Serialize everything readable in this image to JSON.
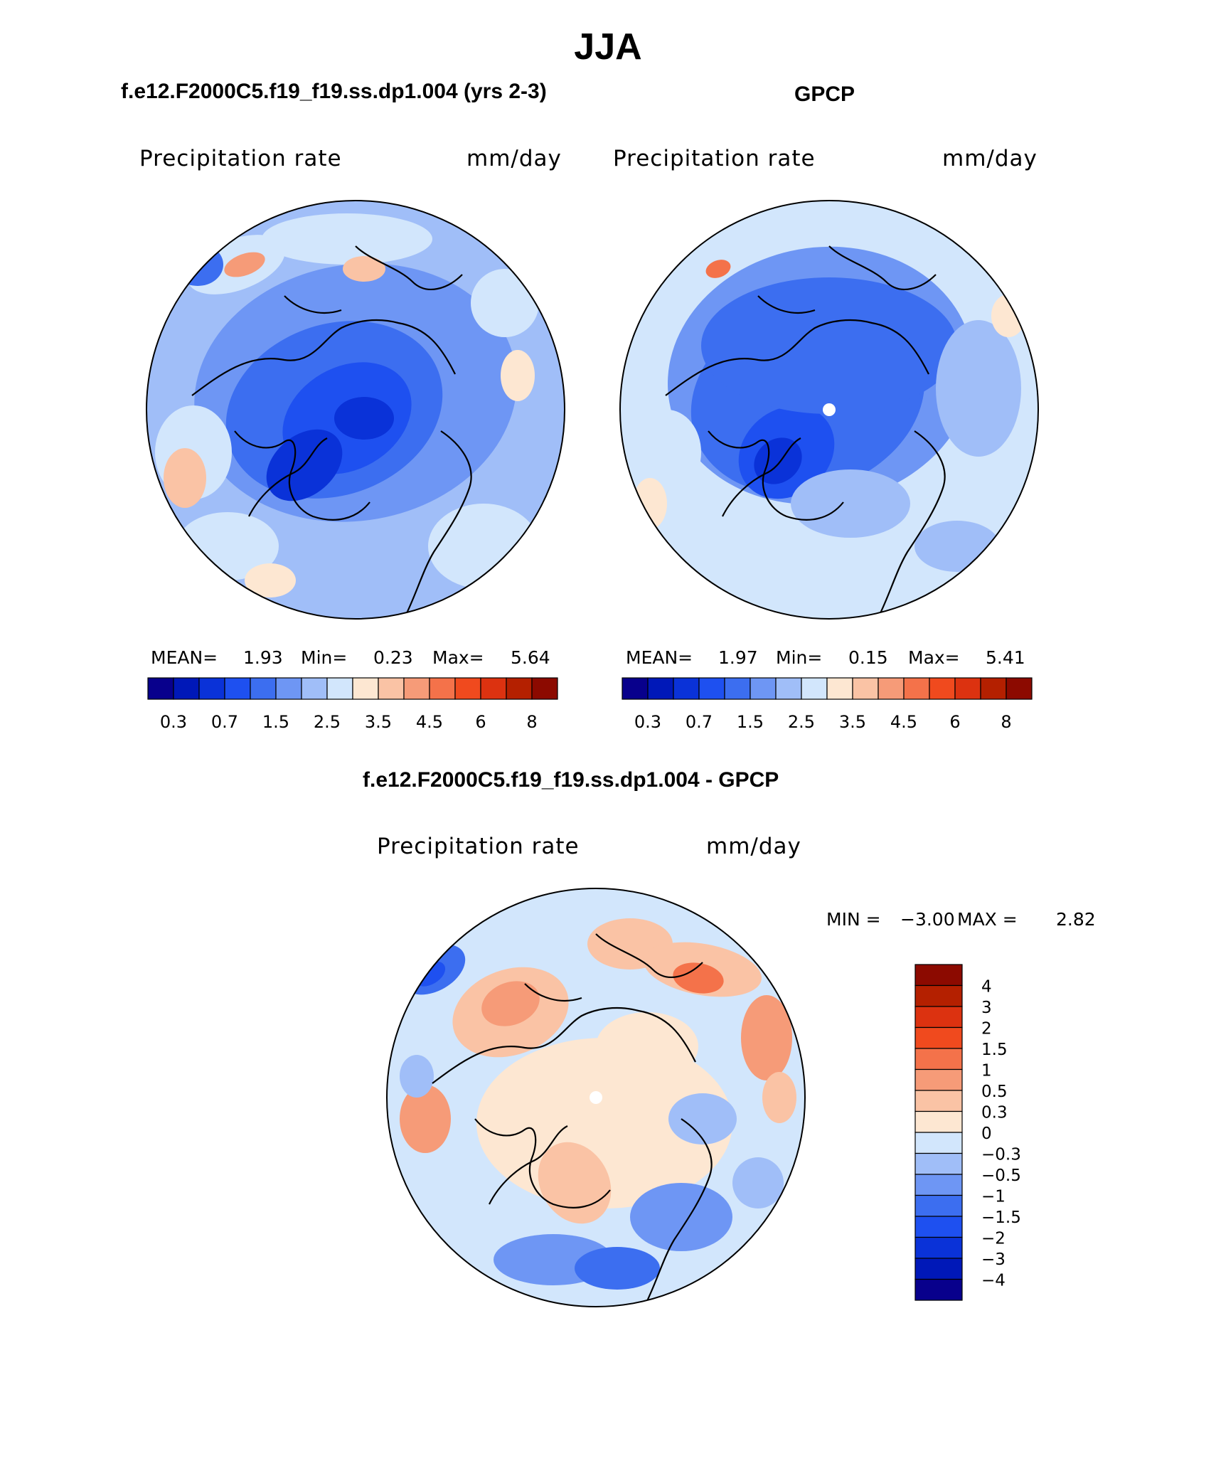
{
  "main_title": "JJA",
  "panels": [
    {
      "title": "f.e12.F2000C5.f19_f19.ss.dp1.004 (yrs 2-3)",
      "variable": "Precipitation rate",
      "units": "mm/day",
      "stats": {
        "mean_label": "MEAN=",
        "mean": "1.93",
        "min_label": "Min=",
        "min": "0.23",
        "max_label": "Max=",
        "max": "5.64"
      }
    },
    {
      "title": "GPCP",
      "variable": "Precipitation rate",
      "units": "mm/day",
      "stats": {
        "mean_label": "MEAN=",
        "mean": "1.97",
        "min_label": "Min=",
        "min": "0.15",
        "max_label": "Max=",
        "max": "5.41"
      }
    },
    {
      "title": "f.e12.F2000C5.f19_f19.ss.dp1.004 - GPCP",
      "variable": "Precipitation rate",
      "units": "mm/day",
      "stats": {
        "min_label": "MIN =",
        "min": "−3.00",
        "max_label": "MAX =",
        "max": "2.82"
      }
    }
  ],
  "chart_data": [
    {
      "type": "heatmap",
      "projection": "north-polar-stereographic",
      "title": "f.e12.F2000C5.f19_f19.ss.dp1.004 (yrs 2-3)",
      "variable": "Precipitation rate",
      "units": "mm/day",
      "mean": 1.93,
      "min": 0.23,
      "max": 5.64,
      "colorbar": {
        "orientation": "horizontal",
        "levels": [
          0.2,
          0.3,
          0.5,
          0.7,
          1,
          1.5,
          2,
          2.5,
          3,
          3.5,
          4,
          4.5,
          5,
          6,
          7,
          8
        ],
        "tick_labels": [
          "0.3",
          "0.7",
          "1.5",
          "2.5",
          "3.5",
          "4.5",
          "6",
          "8"
        ],
        "colors": [
          "#08008c",
          "#0018b8",
          "#0a32d8",
          "#1e50f0",
          "#3c6ef0",
          "#6e96f4",
          "#a0bef8",
          "#d2e6fc",
          "#fde7d2",
          "#fac3a5",
          "#f69b78",
          "#f4724a",
          "#f04a1e",
          "#dc3210",
          "#b42000",
          "#8c0a00"
        ]
      }
    },
    {
      "type": "heatmap",
      "projection": "north-polar-stereographic",
      "title": "GPCP",
      "variable": "Precipitation rate",
      "units": "mm/day",
      "mean": 1.97,
      "min": 0.15,
      "max": 5.41,
      "colorbar": {
        "orientation": "horizontal",
        "levels": [
          0.2,
          0.3,
          0.5,
          0.7,
          1,
          1.5,
          2,
          2.5,
          3,
          3.5,
          4,
          4.5,
          5,
          6,
          7,
          8
        ],
        "tick_labels": [
          "0.3",
          "0.7",
          "1.5",
          "2.5",
          "3.5",
          "4.5",
          "6",
          "8"
        ],
        "colors": [
          "#08008c",
          "#0018b8",
          "#0a32d8",
          "#1e50f0",
          "#3c6ef0",
          "#6e96f4",
          "#a0bef8",
          "#d2e6fc",
          "#fde7d2",
          "#fac3a5",
          "#f69b78",
          "#f4724a",
          "#f04a1e",
          "#dc3210",
          "#b42000",
          "#8c0a00"
        ]
      }
    },
    {
      "type": "heatmap",
      "projection": "north-polar-stereographic",
      "title": "f.e12.F2000C5.f19_f19.ss.dp1.004 - GPCP",
      "variable": "Precipitation rate",
      "units": "mm/day",
      "min": -3.0,
      "max": 2.82,
      "colorbar": {
        "orientation": "vertical",
        "tick_labels": [
          "4",
          "3",
          "2",
          "1.5",
          "1",
          "0.5",
          "0.3",
          "0",
          "−0.3",
          "−0.5",
          "−1",
          "−1.5",
          "−2",
          "−3",
          "−4"
        ],
        "colors_top_to_bottom": [
          "#8c0a00",
          "#b42000",
          "#dc3210",
          "#f04a1e",
          "#f4724a",
          "#f69b78",
          "#fac3a5",
          "#fde7d2",
          "#d2e6fc",
          "#a0bef8",
          "#6e96f4",
          "#3c6ef0",
          "#1e50f0",
          "#0a32d8",
          "#0018b8",
          "#08008c"
        ]
      }
    }
  ]
}
